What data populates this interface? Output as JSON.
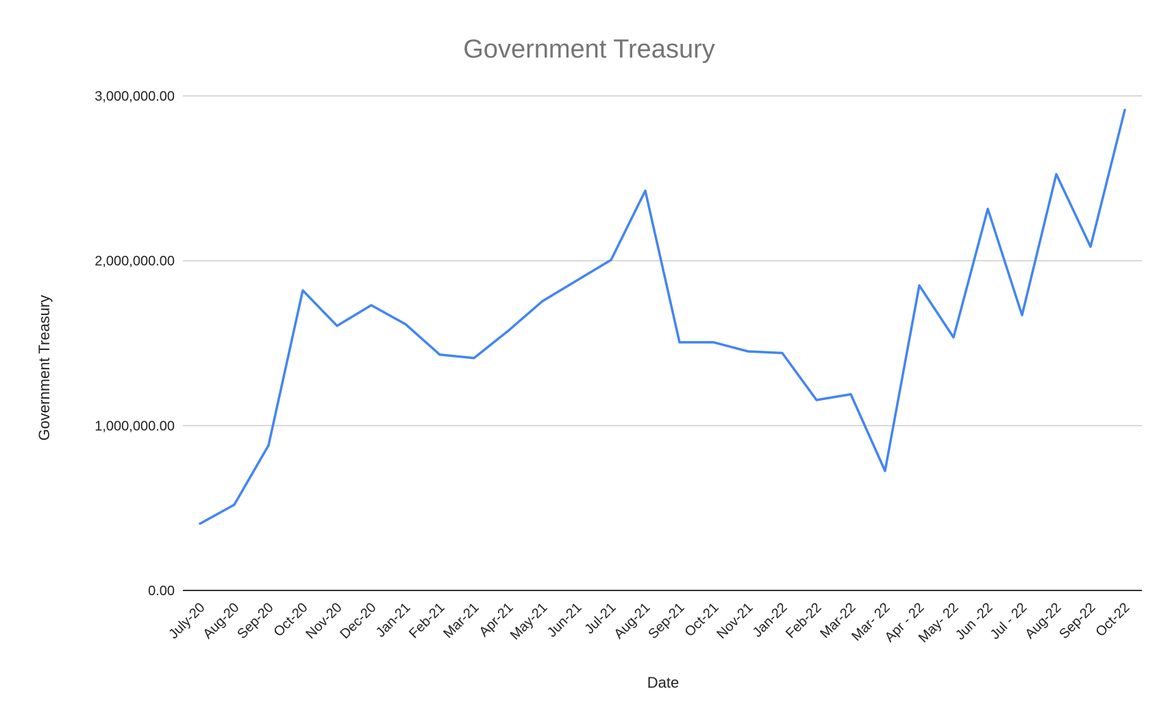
{
  "chart_data": {
    "type": "line",
    "title": "Government Treasury",
    "xlabel": "Date",
    "ylabel": "Government Treasury",
    "categories": [
      "July-20",
      "Aug-20",
      "Sep-20",
      "Oct-20",
      "Nov-20",
      "Dec-20",
      "Jan-21",
      "Feb-21",
      "Mar-21",
      "Apr-21",
      "May-21",
      "Jun-21",
      "Jul-21",
      "Aug-21",
      "Sep-21",
      "Oct-21",
      "Nov-21",
      "Jan-22",
      "Feb-22",
      "Mar-22",
      "Mar- 22",
      "Apr - 22",
      "May- 22",
      "Jun -22",
      "Jul - 22",
      "Aug-22",
      "Sep-22",
      "Oct-22"
    ],
    "series": [
      {
        "name": "",
        "color": "#4285f4",
        "values": [
          405000,
          520000,
          880000,
          1820000,
          1605000,
          1730000,
          1615000,
          1430000,
          1410000,
          1575000,
          1755000,
          1880000,
          2005000,
          2425000,
          1505000,
          1505000,
          1450000,
          1440000,
          1155000,
          1190000,
          725000,
          1850000,
          1535000,
          2315000,
          1670000,
          2525000,
          2085000,
          2915000
        ]
      }
    ],
    "ylim": [
      0,
      3000000
    ],
    "yticks": [
      0,
      1000000,
      2000000,
      3000000
    ],
    "ytick_labels": [
      "0.00",
      "1,000,000.00",
      "2,000,000.00",
      "3,000,000.00"
    ],
    "grid": true,
    "legend": "none",
    "colors": {
      "title": "#757575",
      "axis_text": "#222222",
      "grid": "#cccccc",
      "baseline": "#333333"
    }
  }
}
